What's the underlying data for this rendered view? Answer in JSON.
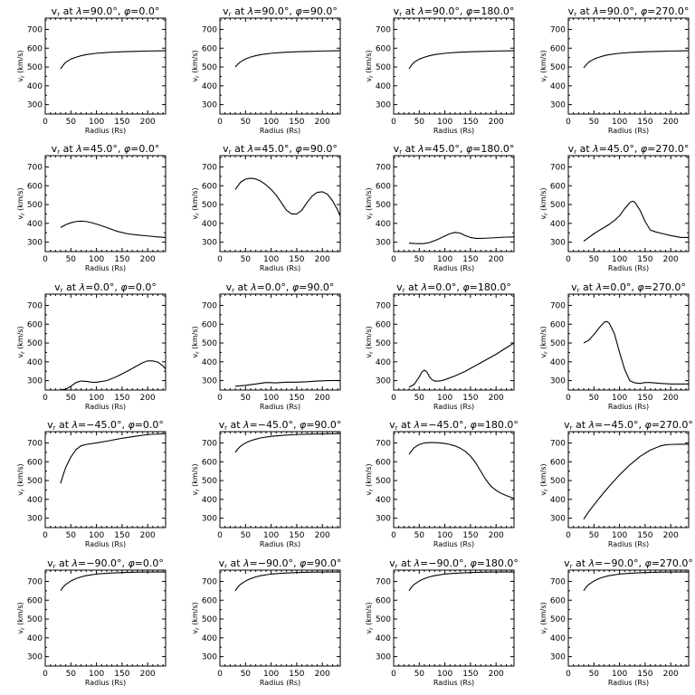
{
  "chart_data": [
    {
      "type": "line",
      "title": "vr at λ=90.0°, φ=0.0°",
      "title_parts": {
        "var": "v",
        "sub": "r",
        "mid": " at ",
        "lam": "λ",
        "lamv": "=90.0°, ",
        "phi": "φ",
        "phiv": "=0.0°"
      },
      "xlabel": "Radius (Rs)",
      "ylabel": "vr (km/s)",
      "xlim": [
        0,
        235
      ],
      "ylim": [
        250,
        760
      ],
      "x": [
        30,
        35,
        40,
        50,
        60,
        70,
        80,
        100,
        125,
        150,
        175,
        200,
        225,
        235
      ],
      "y": [
        490,
        510,
        525,
        542,
        552,
        560,
        566,
        573,
        578,
        581,
        583,
        585,
        586,
        587
      ]
    },
    {
      "type": "line",
      "title": "vr at λ=90.0°, φ=90.0°",
      "title_parts": {
        "var": "v",
        "sub": "r",
        "mid": " at ",
        "lam": "λ",
        "lamv": "=90.0°, ",
        "phi": "φ",
        "phiv": "=90.0°"
      },
      "xlabel": "Radius (Rs)",
      "ylabel": "vr (km/s)",
      "xlim": [
        0,
        235
      ],
      "ylim": [
        250,
        760
      ],
      "x": [
        30,
        35,
        40,
        50,
        60,
        70,
        80,
        100,
        125,
        150,
        175,
        200,
        225,
        235
      ],
      "y": [
        500,
        515,
        527,
        543,
        553,
        560,
        566,
        573,
        578,
        581,
        583,
        585,
        586,
        587
      ]
    },
    {
      "type": "line",
      "title": "vr at λ=90.0°, φ=180.0°",
      "title_parts": {
        "var": "v",
        "sub": "r",
        "mid": " at ",
        "lam": "λ",
        "lamv": "=90.0°, ",
        "phi": "φ",
        "phiv": "=180.0°"
      },
      "xlabel": "Radius (Rs)",
      "ylabel": "vr (km/s)",
      "xlim": [
        0,
        235
      ],
      "ylim": [
        250,
        760
      ],
      "x": [
        30,
        35,
        40,
        50,
        60,
        70,
        80,
        100,
        125,
        150,
        175,
        200,
        225,
        235
      ],
      "y": [
        490,
        510,
        525,
        542,
        552,
        560,
        566,
        573,
        578,
        581,
        583,
        585,
        586,
        587
      ]
    },
    {
      "type": "line",
      "title": "vr at λ=90.0°, φ=270.0°",
      "title_parts": {
        "var": "v",
        "sub": "r",
        "mid": " at ",
        "lam": "λ",
        "lamv": "=90.0°, ",
        "phi": "φ",
        "phiv": "=270.0°"
      },
      "xlabel": "Radius (Rs)",
      "ylabel": "vr (km/s)",
      "xlim": [
        0,
        235
      ],
      "ylim": [
        250,
        760
      ],
      "x": [
        30,
        35,
        40,
        50,
        60,
        70,
        80,
        100,
        125,
        150,
        175,
        200,
        225,
        235
      ],
      "y": [
        495,
        512,
        526,
        542,
        552,
        560,
        566,
        573,
        578,
        581,
        583,
        585,
        586,
        587
      ]
    },
    {
      "type": "line",
      "title": "vr at λ=45.0°, φ=0.0°",
      "title_parts": {
        "var": "v",
        "sub": "r",
        "mid": " at ",
        "lam": "λ",
        "lamv": "=45.0°, ",
        "phi": "φ",
        "phiv": "=0.0°"
      },
      "xlabel": "Radius (Rs)",
      "ylabel": "vr (km/s)",
      "xlim": [
        0,
        235
      ],
      "ylim": [
        250,
        760
      ],
      "x": [
        30,
        40,
        50,
        60,
        70,
        80,
        90,
        100,
        120,
        140,
        160,
        180,
        200,
        220,
        235
      ],
      "y": [
        378,
        393,
        403,
        410,
        412,
        410,
        404,
        396,
        378,
        358,
        345,
        338,
        333,
        328,
        325
      ]
    },
    {
      "type": "line",
      "title": "vr at λ=45.0°, φ=90.0°",
      "title_parts": {
        "var": "v",
        "sub": "r",
        "mid": " at ",
        "lam": "λ",
        "lamv": "=45.0°, ",
        "phi": "φ",
        "phiv": "=90.0°"
      },
      "xlabel": "Radius (Rs)",
      "ylabel": "vr (km/s)",
      "xlim": [
        0,
        235
      ],
      "ylim": [
        250,
        760
      ],
      "x": [
        30,
        40,
        50,
        60,
        70,
        80,
        90,
        100,
        110,
        120,
        130,
        140,
        150,
        160,
        170,
        180,
        190,
        200,
        210,
        220,
        230,
        235
      ],
      "y": [
        580,
        618,
        635,
        640,
        636,
        624,
        605,
        580,
        550,
        510,
        470,
        450,
        450,
        470,
        510,
        545,
        565,
        568,
        555,
        520,
        470,
        440
      ]
    },
    {
      "type": "line",
      "title": "vr at λ=45.0°, φ=180.0°",
      "title_parts": {
        "var": "v",
        "sub": "r",
        "mid": " at ",
        "lam": "λ",
        "lamv": "=45.0°, ",
        "phi": "φ",
        "phiv": "=180.0°"
      },
      "xlabel": "Radius (Rs)",
      "ylabel": "vr (km/s)",
      "xlim": [
        0,
        235
      ],
      "ylim": [
        250,
        760
      ],
      "x": [
        30,
        40,
        50,
        60,
        70,
        80,
        90,
        100,
        110,
        120,
        130,
        140,
        150,
        160,
        170,
        180,
        200,
        220,
        235
      ],
      "y": [
        295,
        293,
        292,
        293,
        298,
        308,
        320,
        333,
        345,
        352,
        348,
        335,
        325,
        320,
        320,
        321,
        324,
        327,
        328
      ]
    },
    {
      "type": "line",
      "title": "vr at λ=45.0°, φ=270.0°",
      "title_parts": {
        "var": "v",
        "sub": "r",
        "mid": " at ",
        "lam": "λ",
        "lamv": "=45.0°, ",
        "phi": "φ",
        "phiv": "=270.0°"
      },
      "xlabel": "Radius (Rs)",
      "ylabel": "vr (km/s)",
      "xlim": [
        0,
        235
      ],
      "ylim": [
        250,
        760
      ],
      "x": [
        30,
        40,
        50,
        60,
        70,
        80,
        90,
        100,
        110,
        120,
        125,
        130,
        140,
        150,
        160,
        170,
        180,
        200,
        220,
        235
      ],
      "y": [
        305,
        325,
        345,
        362,
        378,
        395,
        415,
        440,
        478,
        510,
        518,
        512,
        470,
        410,
        365,
        355,
        348,
        335,
        325,
        325
      ]
    },
    {
      "type": "line",
      "title": "vr at λ=0.0°, φ=0.0°",
      "title_parts": {
        "var": "v",
        "sub": "r",
        "mid": " at ",
        "lam": "λ",
        "lamv": "=0.0°, ",
        "phi": "φ",
        "phiv": "=0.0°"
      },
      "xlabel": "Radius (Rs)",
      "ylabel": "vr (km/s)",
      "xlim": [
        0,
        235
      ],
      "ylim": [
        250,
        760
      ],
      "x": [
        30,
        40,
        50,
        60,
        70,
        80,
        90,
        100,
        120,
        140,
        160,
        180,
        190,
        200,
        210,
        220,
        230,
        235
      ],
      "y": [
        250,
        255,
        270,
        290,
        298,
        296,
        292,
        291,
        300,
        322,
        350,
        380,
        395,
        405,
        405,
        398,
        378,
        362
      ]
    },
    {
      "type": "line",
      "title": "vr at λ=0.0°, φ=90.0°",
      "title_parts": {
        "var": "v",
        "sub": "r",
        "mid": " at ",
        "lam": "λ",
        "lamv": "=0.0°, ",
        "phi": "φ",
        "phiv": "=90.0°"
      },
      "xlabel": "Radius (Rs)",
      "ylabel": "vr (km/s)",
      "xlim": [
        0,
        235
      ],
      "ylim": [
        250,
        760
      ],
      "x": [
        30,
        50,
        70,
        90,
        110,
        130,
        150,
        170,
        190,
        210,
        235
      ],
      "y": [
        270,
        275,
        282,
        290,
        288,
        292,
        292,
        294,
        298,
        300,
        301
      ]
    },
    {
      "type": "line",
      "title": "vr at λ=0.0°, φ=180.0°",
      "title_parts": {
        "var": "v",
        "sub": "r",
        "mid": " at ",
        "lam": "λ",
        "lamv": "=0.0°, ",
        "phi": "φ",
        "phiv": "=180.0°"
      },
      "xlabel": "Radius (Rs)",
      "ylabel": "vr (km/s)",
      "xlim": [
        0,
        235
      ],
      "ylim": [
        250,
        760
      ],
      "x": [
        30,
        40,
        50,
        55,
        60,
        65,
        70,
        75,
        80,
        90,
        100,
        120,
        140,
        160,
        180,
        200,
        220,
        235
      ],
      "y": [
        265,
        280,
        320,
        345,
        356,
        345,
        320,
        305,
        298,
        298,
        305,
        325,
        350,
        380,
        410,
        440,
        475,
        500
      ]
    },
    {
      "type": "line",
      "title": "vr at λ=0.0°, φ=270.0°",
      "title_parts": {
        "var": "v",
        "sub": "r",
        "mid": " at ",
        "lam": "λ",
        "lamv": "=0.0°, ",
        "phi": "φ",
        "phiv": "=270.0°"
      },
      "xlabel": "Radius (Rs)",
      "ylabel": "vr (km/s)",
      "xlim": [
        0,
        235
      ],
      "ylim": [
        250,
        760
      ],
      "x": [
        30,
        40,
        50,
        60,
        70,
        75,
        80,
        90,
        100,
        110,
        120,
        130,
        140,
        150,
        160,
        180,
        200,
        235
      ],
      "y": [
        500,
        515,
        545,
        580,
        610,
        615,
        605,
        550,
        450,
        360,
        300,
        288,
        285,
        290,
        290,
        285,
        282,
        282
      ]
    },
    {
      "type": "line",
      "title": "vr at λ=-45.0°, φ=0.0°",
      "title_parts": {
        "var": "v",
        "sub": "r",
        "mid": " at ",
        "lam": "λ",
        "lamv": "=−45.0°, ",
        "phi": "φ",
        "phiv": "=0.0°"
      },
      "xlabel": "Radius (Rs)",
      "ylabel": "vr (km/s)",
      "xlim": [
        0,
        235
      ],
      "ylim": [
        250,
        760
      ],
      "x": [
        30,
        35,
        40,
        50,
        60,
        70,
        80,
        100,
        125,
        150,
        175,
        200,
        225,
        235
      ],
      "y": [
        485,
        530,
        570,
        625,
        665,
        685,
        692,
        700,
        712,
        725,
        735,
        745,
        748,
        750
      ]
    },
    {
      "type": "line",
      "title": "vr at λ=-45.0°, φ=90.0°",
      "title_parts": {
        "var": "v",
        "sub": "r",
        "mid": " at ",
        "lam": "λ",
        "lamv": "=−45.0°, ",
        "phi": "φ",
        "phiv": "=90.0°"
      },
      "xlabel": "Radius (Rs)",
      "ylabel": "vr (km/s)",
      "xlim": [
        0,
        235
      ],
      "ylim": [
        250,
        760
      ],
      "x": [
        30,
        35,
        40,
        50,
        60,
        70,
        80,
        100,
        125,
        150,
        175,
        200,
        225,
        235
      ],
      "y": [
        650,
        668,
        682,
        700,
        712,
        720,
        727,
        735,
        741,
        745,
        747,
        748,
        749,
        750
      ]
    },
    {
      "type": "line",
      "title": "vr at λ=-45.0°, φ=180.0°",
      "title_parts": {
        "var": "v",
        "sub": "r",
        "mid": " at ",
        "lam": "λ",
        "lamv": "=−45.0°, ",
        "phi": "φ",
        "phiv": "=180.0°"
      },
      "xlabel": "Radius (Rs)",
      "ylabel": "vr (km/s)",
      "xlim": [
        0,
        235
      ],
      "ylim": [
        250,
        760
      ],
      "x": [
        30,
        40,
        50,
        60,
        70,
        80,
        90,
        100,
        110,
        120,
        130,
        140,
        150,
        160,
        170,
        180,
        190,
        200,
        210,
        220,
        235
      ],
      "y": [
        640,
        675,
        692,
        700,
        702,
        702,
        700,
        697,
        692,
        684,
        672,
        655,
        630,
        595,
        550,
        505,
        470,
        448,
        432,
        420,
        405
      ]
    },
    {
      "type": "line",
      "title": "vr at λ=-45.0°, φ=270.0°",
      "title_parts": {
        "var": "v",
        "sub": "r",
        "mid": " at ",
        "lam": "λ",
        "lamv": "=−45.0°, ",
        "phi": "φ",
        "phiv": "=270.0°"
      },
      "xlabel": "Radius (Rs)",
      "ylabel": "vr (km/s)",
      "xlim": [
        0,
        235
      ],
      "ylim": [
        250,
        760
      ],
      "x": [
        30,
        40,
        50,
        60,
        80,
        100,
        120,
        140,
        160,
        180,
        190,
        200,
        215,
        235
      ],
      "y": [
        295,
        335,
        370,
        405,
        470,
        530,
        583,
        628,
        662,
        684,
        690,
        692,
        693,
        693
      ]
    },
    {
      "type": "line",
      "title": "vr at λ=-90.0°, φ=0.0°",
      "title_parts": {
        "var": "v",
        "sub": "r",
        "mid": " at ",
        "lam": "λ",
        "lamv": "=−90.0°, ",
        "phi": "φ",
        "phiv": "=0.0°"
      },
      "xlabel": "Radius (Rs)",
      "ylabel": "vr (km/s)",
      "xlim": [
        0,
        235
      ],
      "ylim": [
        250,
        760
      ],
      "x": [
        30,
        35,
        40,
        50,
        60,
        70,
        80,
        100,
        125,
        150,
        175,
        200,
        225,
        235
      ],
      "y": [
        650,
        670,
        684,
        702,
        715,
        724,
        731,
        739,
        744,
        747,
        749,
        750,
        750,
        750
      ]
    },
    {
      "type": "line",
      "title": "vr at λ=-90.0°, φ=90.0°",
      "title_parts": {
        "var": "v",
        "sub": "r",
        "mid": " at ",
        "lam": "λ",
        "lamv": "=−90.0°, ",
        "phi": "φ",
        "phiv": "=90.0°"
      },
      "xlabel": "Radius (Rs)",
      "ylabel": "vr (km/s)",
      "xlim": [
        0,
        235
      ],
      "ylim": [
        250,
        760
      ],
      "x": [
        30,
        35,
        40,
        50,
        60,
        70,
        80,
        100,
        125,
        150,
        175,
        200,
        225,
        235
      ],
      "y": [
        650,
        670,
        684,
        702,
        715,
        724,
        731,
        739,
        744,
        747,
        749,
        750,
        750,
        750
      ]
    },
    {
      "type": "line",
      "title": "vr at λ=-90.0°, φ=180.0°",
      "title_parts": {
        "var": "v",
        "sub": "r",
        "mid": " at ",
        "lam": "λ",
        "lamv": "=−90.0°, ",
        "phi": "φ",
        "phiv": "=180.0°"
      },
      "xlabel": "Radius (Rs)",
      "ylabel": "vr (km/s)",
      "xlim": [
        0,
        235
      ],
      "ylim": [
        250,
        760
      ],
      "x": [
        30,
        35,
        40,
        50,
        60,
        70,
        80,
        100,
        125,
        150,
        175,
        200,
        225,
        235
      ],
      "y": [
        650,
        670,
        684,
        702,
        715,
        724,
        731,
        739,
        744,
        747,
        749,
        750,
        750,
        750
      ]
    },
    {
      "type": "line",
      "title": "vr at λ=-90.0°, φ=270.0°",
      "title_parts": {
        "var": "v",
        "sub": "r",
        "mid": " at ",
        "lam": "λ",
        "lamv": "=−90.0°, ",
        "phi": "φ",
        "phiv": "=270.0°"
      },
      "xlabel": "Radius (Rs)",
      "ylabel": "vr (km/s)",
      "xlim": [
        0,
        235
      ],
      "ylim": [
        250,
        760
      ],
      "x": [
        30,
        35,
        40,
        50,
        60,
        70,
        80,
        100,
        125,
        150,
        175,
        200,
        225,
        235
      ],
      "y": [
        650,
        670,
        684,
        702,
        715,
        724,
        731,
        739,
        744,
        747,
        749,
        750,
        750,
        750
      ]
    }
  ],
  "axes": {
    "x_ticks": [
      0,
      50,
      100,
      150,
      200
    ],
    "y_ticks": [
      300,
      400,
      500,
      600,
      700
    ],
    "xlabel": "Radius (Rs)",
    "ylabel_var": "v",
    "ylabel_sub": "r",
    "ylabel_unit": " (km/s)"
  },
  "style": {
    "line_color": "#000000",
    "background": "#ffffff"
  }
}
